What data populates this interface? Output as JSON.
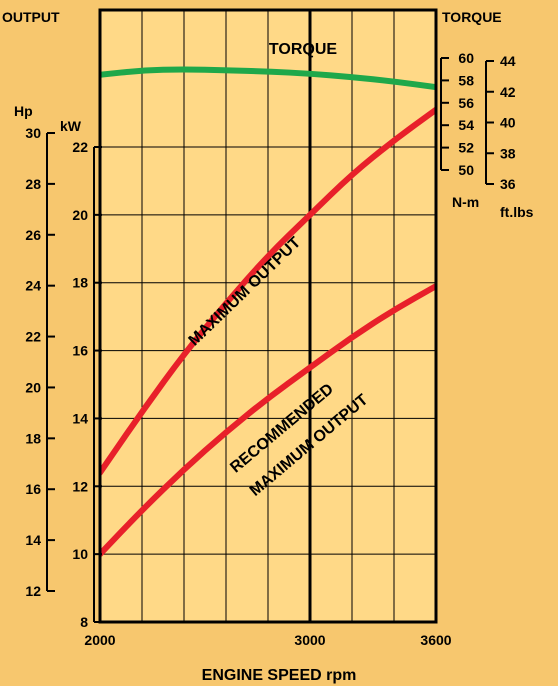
{
  "chart_data": {
    "type": "line",
    "title": "",
    "xlabel": "ENGINE SPEED  rpm",
    "x_ticks": [
      2000,
      3000,
      3600
    ],
    "xlim": [
      2000,
      3600
    ],
    "x_gridlines": [
      2000,
      2200,
      2400,
      2600,
      2800,
      3000,
      3200,
      3400,
      3600
    ],
    "highlight_x": 3000,
    "grid": true,
    "left_label": "OUTPUT",
    "right_label": "TORQUE",
    "axes": {
      "kw": {
        "unit": "kW",
        "ticks": [
          8,
          10,
          12,
          14,
          16,
          18,
          20,
          22
        ],
        "range": [
          8,
          22
        ]
      },
      "hp": {
        "unit": "Hp",
        "ticks": [
          12,
          14,
          16,
          18,
          20,
          22,
          24,
          26,
          28,
          30
        ],
        "range": [
          12,
          30
        ]
      },
      "nm": {
        "unit": "N-m",
        "ticks": [
          50,
          52,
          54,
          56,
          58,
          60
        ],
        "range": [
          50,
          60
        ]
      },
      "ftlbs": {
        "unit": "ft.lbs",
        "ticks": [
          36,
          38,
          40,
          42,
          44
        ],
        "range": [
          36,
          44
        ]
      }
    },
    "series": [
      {
        "name": "MAXIMUM OUTPUT",
        "axis": "kw",
        "color": "#e8202a",
        "x": [
          2000,
          2200,
          2400,
          2600,
          2800,
          3000,
          3200,
          3400,
          3600
        ],
        "y": [
          12.4,
          14.2,
          15.9,
          17.4,
          18.8,
          20.0,
          21.2,
          22.2,
          23.1
        ]
      },
      {
        "name": "RECOMMENDED MAXIMUM OUTPUT",
        "axis": "kw",
        "color": "#e8202a",
        "x": [
          2000,
          2200,
          2400,
          2600,
          2800,
          3000,
          3200,
          3400,
          3600
        ],
        "y": [
          10.0,
          11.3,
          12.5,
          13.6,
          14.6,
          15.5,
          16.4,
          17.2,
          17.9
        ]
      },
      {
        "name": "TORQUE",
        "axis": "nm",
        "color": "#1fa84a",
        "x": [
          2000,
          2200,
          2400,
          2600,
          2800,
          3000,
          3200,
          3400,
          3600
        ],
        "y": [
          58.5,
          58.9,
          59.0,
          58.9,
          58.8,
          58.6,
          58.3,
          57.9,
          57.4
        ]
      }
    ],
    "series_labels": [
      "MAXIMUM OUTPUT",
      "RECOMMENDED",
      "MAXIMUM OUTPUT",
      "TORQUE"
    ]
  }
}
